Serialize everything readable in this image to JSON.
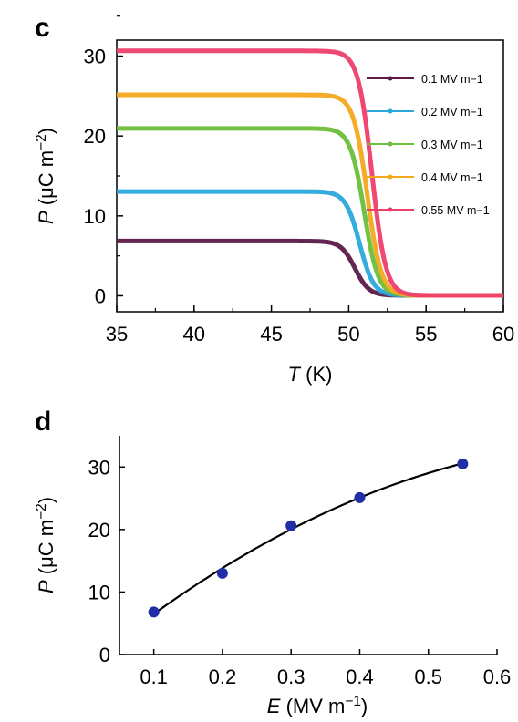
{
  "chart_data": [
    {
      "type": "line",
      "panel": "c",
      "xlabel": "T (K)",
      "ylabel": "P (μC m−2)",
      "xlim": [
        35,
        60
      ],
      "ylim": [
        -2,
        32
      ],
      "xticks": [
        35,
        40,
        45,
        50,
        55,
        60
      ],
      "yticks": [
        0,
        10,
        20,
        30
      ],
      "legend_position": "top-right",
      "series": [
        {
          "name": "0.1 MV m−1",
          "color": "#5b1a48",
          "plateau": 6.8,
          "tc": 50.4
        },
        {
          "name": "0.2 MV m−1",
          "color": "#2aa8dc",
          "plateau": 13.0,
          "tc": 50.7
        },
        {
          "name": "0.3 MV m−1",
          "color": "#6bbf3a",
          "plateau": 20.9,
          "tc": 51.0
        },
        {
          "name": "0.4 MV m−1",
          "color": "#f4a81c",
          "plateau": 25.1,
          "tc": 51.2
        },
        {
          "name": "0.55 MV m−1",
          "color": "#ee3f6b",
          "plateau": 30.6,
          "tc": 51.5
        }
      ]
    },
    {
      "type": "scatter",
      "panel": "d",
      "xlabel": "E (MV m−1)",
      "ylabel": "P (μC m−2)",
      "xlim": [
        0.05,
        0.6
      ],
      "ylim": [
        0,
        35
      ],
      "xticks": [
        0.1,
        0.2,
        0.3,
        0.4,
        0.5,
        0.6
      ],
      "yticks": [
        0,
        10,
        20,
        30
      ],
      "points": [
        {
          "x": 0.1,
          "y": 6.8
        },
        {
          "x": 0.2,
          "y": 13.0
        },
        {
          "x": 0.3,
          "y": 20.6
        },
        {
          "x": 0.4,
          "y": 25.1
        },
        {
          "x": 0.55,
          "y": 30.5
        }
      ],
      "point_color": "#1e2fa8",
      "fit_color": "#000000"
    }
  ],
  "panels": {
    "c_label": "c",
    "d_label": "d"
  }
}
